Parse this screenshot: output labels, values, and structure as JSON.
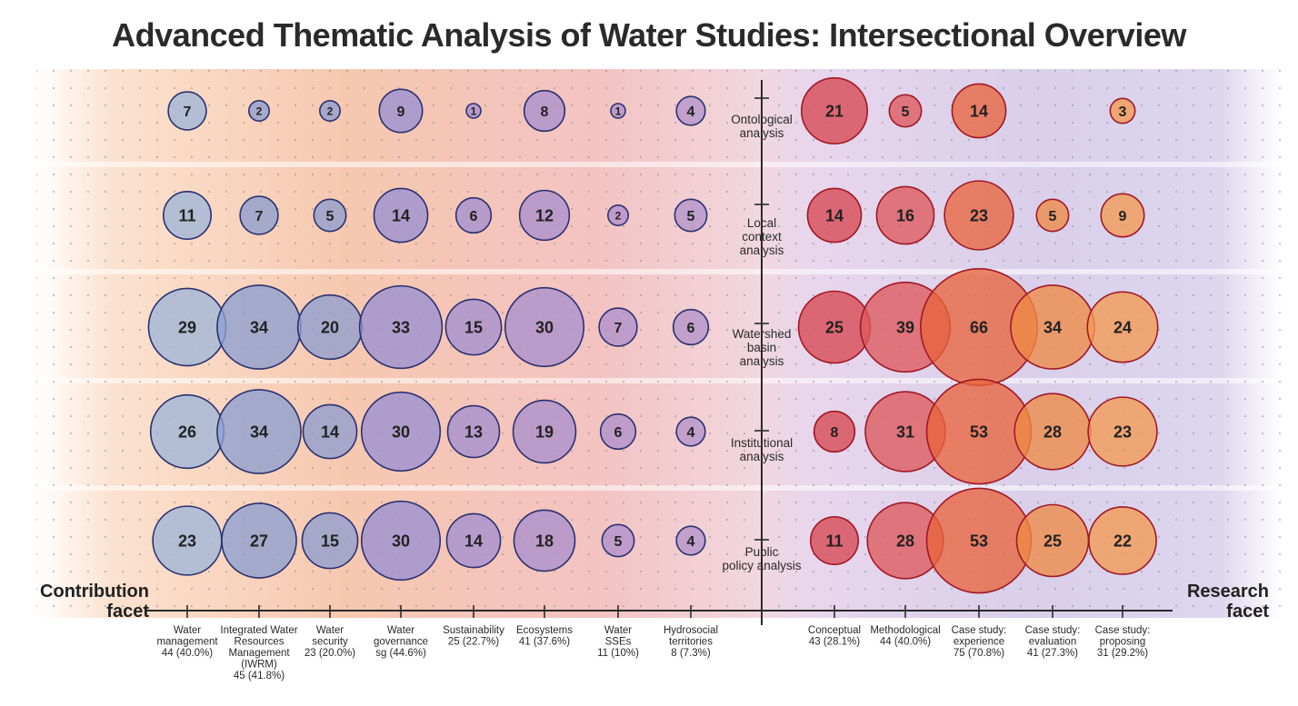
{
  "title": "Advanced Thematic Analysis of Water Studies: Intersectional Overview",
  "facets": {
    "left": [
      "Contribution",
      "facet"
    ],
    "right": [
      "Research",
      "facet"
    ]
  },
  "chart_data": {
    "type": "bubble-matrix",
    "rows": [
      [
        "Ontological",
        "analysis"
      ],
      [
        "Local",
        "context",
        "analysis"
      ],
      [
        "Watershed",
        "basin",
        "analysis"
      ],
      [
        "Institutional",
        "analysis"
      ],
      [
        "Public",
        "policy analysis"
      ]
    ],
    "contribution_categories": [
      {
        "label": [
          "Water",
          "management",
          "44 (40.0%)"
        ],
        "values": [
          7,
          11,
          29,
          26,
          23
        ]
      },
      {
        "label": [
          "Integrated Water",
          "Resources",
          "Management",
          "(IWRM)",
          "45 (41.8%)"
        ],
        "values": [
          2,
          7,
          34,
          34,
          27
        ]
      },
      {
        "label": [
          "Water",
          "security",
          "23 (20.0%)"
        ],
        "values": [
          2,
          5,
          20,
          14,
          15
        ]
      },
      {
        "label": [
          "Water",
          "governance",
          "sg (44.6%)"
        ],
        "values": [
          9,
          14,
          33,
          30,
          30
        ]
      },
      {
        "label": [
          "Sustainability",
          "25 (22.7%)"
        ],
        "values": [
          1,
          6,
          15,
          13,
          14
        ]
      },
      {
        "label": [
          "Ecosystems",
          "41 (37.6%)"
        ],
        "values": [
          8,
          12,
          30,
          19,
          18
        ]
      },
      {
        "label": [
          "Water",
          "SSEs",
          "11 (10%)"
        ],
        "values": [
          1,
          2,
          7,
          6,
          5
        ]
      },
      {
        "label": [
          "Hydrosocial",
          "territories",
          "8 (7.3%)"
        ],
        "values": [
          4,
          5,
          6,
          4,
          4
        ]
      }
    ],
    "research_categories": [
      {
        "label": [
          "Conceptual",
          "43 (28.1%)"
        ],
        "values": [
          21,
          14,
          25,
          8,
          11
        ]
      },
      {
        "label": [
          "Methodological",
          "44 (40.0%)"
        ],
        "values": [
          5,
          16,
          39,
          31,
          28
        ]
      },
      {
        "label": [
          "Case study:",
          "experience",
          "75 (70.8%)"
        ],
        "values": [
          14,
          23,
          66,
          53,
          53
        ]
      },
      {
        "label": [
          "Case study:",
          "evaluation",
          "41 (27.3%)"
        ],
        "values": [
          null,
          5,
          34,
          28,
          25
        ]
      },
      {
        "label": [
          "Case study:",
          "proposing",
          "31 (29.2%)"
        ],
        "values": [
          3,
          9,
          24,
          23,
          22
        ]
      }
    ],
    "colors": {
      "contribution": [
        "#9fb6d8",
        "#8d9fd0",
        "#8f9ed0",
        "#9a90d2",
        "#a48fcf",
        "#aa8fcc",
        "#b08fcc",
        "#b493ca"
      ],
      "research": [
        "#d94852",
        "#de5a5c",
        "#e8653e",
        "#ee8a45",
        "#f49a52"
      ],
      "contribution_stroke": "#2b3170",
      "research_stroke": "#a01826"
    }
  }
}
